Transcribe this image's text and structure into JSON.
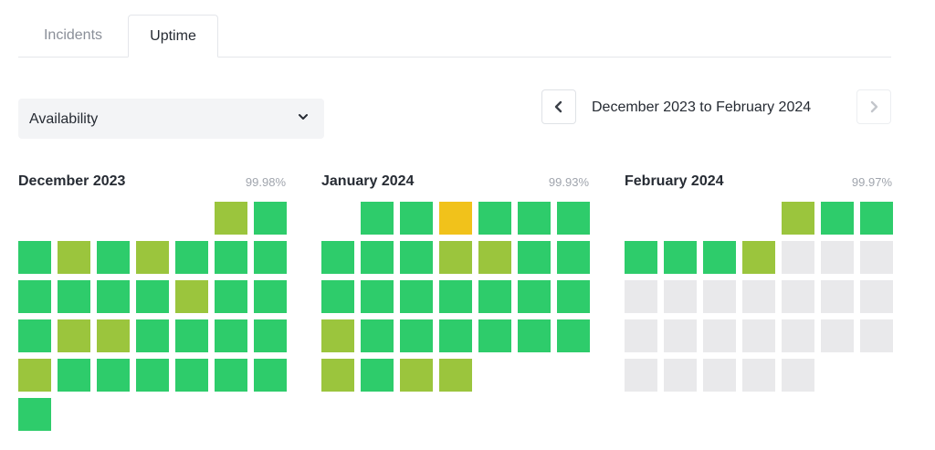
{
  "tabs": [
    {
      "label": "Incidents",
      "active": false
    },
    {
      "label": "Uptime",
      "active": true
    }
  ],
  "metric_select": {
    "selected": "Availability"
  },
  "date_range": {
    "label": "December 2023 to February 2024"
  },
  "legend_colors": {
    "operational": "#2ecc6b",
    "minor": "#9bc53d",
    "degraded": "#f1c21b",
    "no_data": "#e9e9eb"
  },
  "months": [
    {
      "title": "December 2023",
      "uptime": "99.98%",
      "start_offset": 5,
      "days": [
        "minor",
        "operational",
        "operational",
        "minor",
        "operational",
        "minor",
        "operational",
        "operational",
        "operational",
        "operational",
        "operational",
        "operational",
        "operational",
        "minor",
        "operational",
        "operational",
        "operational",
        "minor",
        "minor",
        "operational",
        "operational",
        "operational",
        "operational",
        "minor",
        "operational",
        "operational",
        "operational",
        "operational",
        "operational",
        "operational",
        "operational"
      ]
    },
    {
      "title": "January 2024",
      "uptime": "99.93%",
      "start_offset": 1,
      "days": [
        "operational",
        "operational",
        "degraded",
        "operational",
        "operational",
        "operational",
        "operational",
        "operational",
        "operational",
        "minor",
        "minor",
        "operational",
        "operational",
        "operational",
        "operational",
        "operational",
        "operational",
        "operational",
        "operational",
        "operational",
        "minor",
        "operational",
        "operational",
        "operational",
        "operational",
        "operational",
        "operational",
        "minor",
        "operational",
        "minor",
        "minor"
      ]
    },
    {
      "title": "February 2024",
      "uptime": "99.97%",
      "start_offset": 4,
      "days": [
        "minor",
        "operational",
        "operational",
        "operational",
        "operational",
        "operational",
        "minor",
        "no_data",
        "no_data",
        "no_data",
        "no_data",
        "no_data",
        "no_data",
        "no_data",
        "no_data",
        "no_data",
        "no_data",
        "no_data",
        "no_data",
        "no_data",
        "no_data",
        "no_data",
        "no_data",
        "no_data",
        "no_data",
        "no_data",
        "no_data",
        "no_data",
        "no_data"
      ]
    }
  ]
}
